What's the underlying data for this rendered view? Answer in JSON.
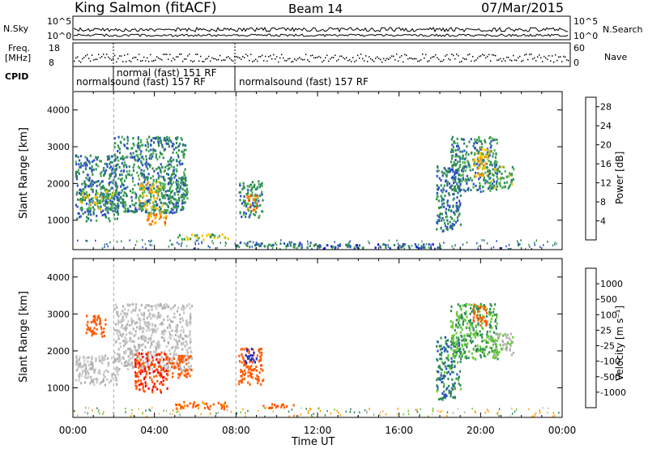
{
  "header": {
    "station": "King Salmon (fitACF)",
    "beam": "Beam 14",
    "date": "07/Mar/2015"
  },
  "top_panels": {
    "nsky_label": "N.Sky",
    "nsearch_label": "N.Search",
    "noise_ticks": [
      "10^5",
      "10^0"
    ],
    "freq_label": "Freq.",
    "freq_unit": "[MHz]",
    "freq_ticks": [
      "18",
      "8"
    ],
    "nave_label": "Nave",
    "nave_ticks": [
      "60",
      "0"
    ],
    "cpid_label": "CPID",
    "cpid_segments": [
      {
        "label": "normalsound (fast) 157 RF",
        "start_hour": 0.0,
        "end_hour": 2.0
      },
      {
        "label": "normal (fast) 151 RF",
        "start_hour": 2.0,
        "end_hour": 8.0
      },
      {
        "label": "normalsound (fast) 157 RF",
        "start_hour": 8.0,
        "end_hour": 24.0
      }
    ]
  },
  "colors": {
    "power": [
      "#0a14e6",
      "#2a4fc4",
      "#2e8b57",
      "#4caf50",
      "#f5c400",
      "#ff9900",
      "#ff5a00",
      "#e00000"
    ],
    "velocity": [
      "#ff0000",
      "#ff5a00",
      "#ff9900",
      "#ffb347",
      "#c8c8c8",
      "#b0b0b0",
      "#66cc33",
      "#2e8b57",
      "#2a4fc4",
      "#1428c8"
    ]
  },
  "chart_data": [
    {
      "type": "heatmap",
      "title": "",
      "xlabel": "",
      "ylabel": "Slant Range [km]",
      "xlim": [
        0,
        24
      ],
      "ylim": [
        200,
        4500
      ],
      "x_ticks": [
        "00:00",
        "04:00",
        "08:00",
        "12:00",
        "16:00",
        "20:00",
        "00:00"
      ],
      "y_ticks": [
        "1000",
        "2000",
        "3000",
        "4000"
      ],
      "colorbar_label": "Power [dB]",
      "colorbar_ticks": [
        "4",
        "8",
        "12",
        "16",
        "20",
        "24",
        "28"
      ],
      "colorbar_range": [
        0,
        30
      ],
      "patches": [
        {
          "t0": 0.1,
          "t1": 2.2,
          "r0": 1000,
          "r1": 2800,
          "value": 8
        },
        {
          "t0": 0.3,
          "t1": 2.0,
          "r0": 1300,
          "r1": 1900,
          "value": 14
        },
        {
          "t0": 2.0,
          "t1": 5.5,
          "r0": 1200,
          "r1": 3300,
          "value": 9
        },
        {
          "t0": 3.2,
          "t1": 4.4,
          "r0": 1300,
          "r1": 2100,
          "value": 16
        },
        {
          "t0": 3.6,
          "t1": 4.6,
          "r0": 900,
          "r1": 1300,
          "value": 20
        },
        {
          "t0": 4.6,
          "t1": 5.6,
          "r0": 1500,
          "r1": 2200,
          "value": 10
        },
        {
          "t0": 5.0,
          "t1": 7.6,
          "r0": 500,
          "r1": 650,
          "value": 14
        },
        {
          "t0": 8.1,
          "t1": 9.3,
          "r0": 1100,
          "r1": 2100,
          "value": 10
        },
        {
          "t0": 8.5,
          "t1": 9.0,
          "r0": 1300,
          "r1": 1700,
          "value": 22
        },
        {
          "t0": 8.0,
          "t1": 12.0,
          "r0": 280,
          "r1": 420,
          "value": 8
        },
        {
          "t0": 12.0,
          "t1": 18.0,
          "r0": 250,
          "r1": 380,
          "value": 6
        },
        {
          "t0": 17.8,
          "t1": 19.0,
          "r0": 700,
          "r1": 2500,
          "value": 8
        },
        {
          "t0": 18.5,
          "t1": 20.8,
          "r0": 1800,
          "r1": 3300,
          "value": 9
        },
        {
          "t0": 19.6,
          "t1": 20.4,
          "r0": 2200,
          "r1": 3000,
          "value": 18
        },
        {
          "t0": 20.3,
          "t1": 21.6,
          "r0": 1900,
          "r1": 2500,
          "value": 12
        }
      ]
    },
    {
      "type": "heatmap",
      "title": "",
      "xlabel": "Time UT",
      "ylabel": "Slant Range [km]",
      "xlim": [
        0,
        24
      ],
      "ylim": [
        200,
        4500
      ],
      "x_ticks": [
        "00:00",
        "04:00",
        "08:00",
        "12:00",
        "16:00",
        "20:00",
        "00:00"
      ],
      "y_ticks": [
        "1000",
        "2000",
        "3000",
        "4000"
      ],
      "colorbar_label": "Velocity [m s⁻¹]",
      "colorbar_ticks": [
        "1000",
        "500",
        "100",
        "25",
        "-25",
        "-100",
        "-500",
        "-1000"
      ],
      "colorbar_range": [
        -1000,
        1000
      ],
      "patches": [
        {
          "t0": 0.1,
          "t1": 2.2,
          "r0": 1100,
          "r1": 1900,
          "value": 0
        },
        {
          "t0": 0.6,
          "t1": 1.6,
          "r0": 2400,
          "r1": 3000,
          "value": -300
        },
        {
          "t0": 2.0,
          "t1": 5.8,
          "r0": 1500,
          "r1": 3300,
          "value": 0
        },
        {
          "t0": 3.0,
          "t1": 4.6,
          "r0": 900,
          "r1": 2000,
          "value": -500
        },
        {
          "t0": 4.6,
          "t1": 5.8,
          "r0": 1300,
          "r1": 1900,
          "value": -200
        },
        {
          "t0": 5.0,
          "t1": 7.6,
          "r0": 450,
          "r1": 650,
          "value": -150
        },
        {
          "t0": 8.1,
          "t1": 9.3,
          "r0": 1100,
          "r1": 2100,
          "value": -300
        },
        {
          "t0": 8.4,
          "t1": 9.0,
          "r0": 1700,
          "r1": 2100,
          "value": 600
        },
        {
          "t0": 9.3,
          "t1": 10.8,
          "r0": 480,
          "r1": 600,
          "value": -200
        },
        {
          "t0": 17.8,
          "t1": 19.0,
          "r0": 700,
          "r1": 2400,
          "value": 80
        },
        {
          "t0": 18.5,
          "t1": 20.8,
          "r0": 1800,
          "r1": 3300,
          "value": 50
        },
        {
          "t0": 19.6,
          "t1": 20.3,
          "r0": 2700,
          "r1": 3300,
          "value": -300
        },
        {
          "t0": 20.3,
          "t1": 21.6,
          "r0": 1900,
          "r1": 2500,
          "value": 20
        }
      ]
    }
  ]
}
